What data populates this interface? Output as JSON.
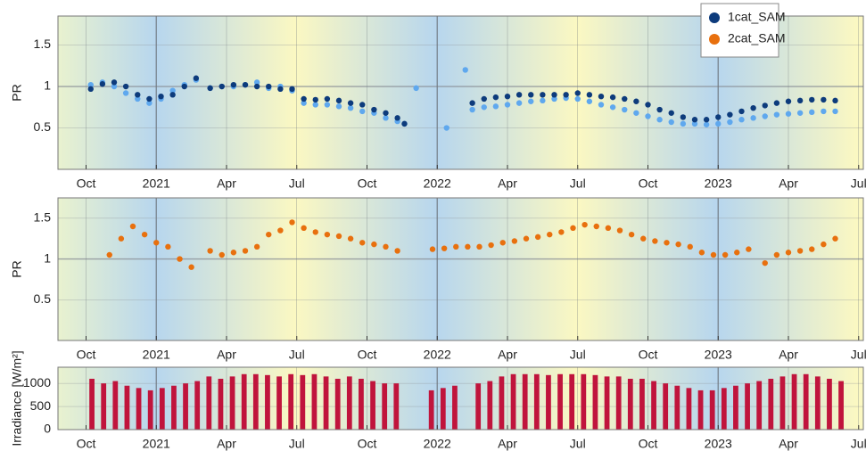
{
  "chart_data": [
    {
      "type": "scatter",
      "ylabel": "PR",
      "legend": "upper right",
      "grid": true,
      "xlim": [
        -1.2,
        33.2
      ],
      "xticks": [
        {
          "value": 0,
          "label": "Oct"
        },
        {
          "value": 3,
          "label": "2021"
        },
        {
          "value": 6,
          "label": "Apr"
        },
        {
          "value": 9,
          "label": "Jul"
        },
        {
          "value": 12,
          "label": "Oct"
        },
        {
          "value": 15,
          "label": "2022"
        },
        {
          "value": 18,
          "label": "Apr"
        },
        {
          "value": 21,
          "label": "Jul"
        },
        {
          "value": 24,
          "label": "Oct"
        },
        {
          "value": 27,
          "label": "2023"
        },
        {
          "value": 30,
          "label": "Apr"
        },
        {
          "value": 33,
          "label": "Jul"
        }
      ],
      "ylim": [
        0,
        1.85
      ],
      "yticks": [
        0.5,
        1,
        1.5
      ],
      "x": [
        0.2,
        0.7,
        1.2,
        1.7,
        2.2,
        2.7,
        3.2,
        3.7,
        4.2,
        4.7,
        5.3,
        5.8,
        6.3,
        6.8,
        7.3,
        7.8,
        8.3,
        8.8,
        9.3,
        9.8,
        10.3,
        10.8,
        11.3,
        11.8,
        12.3,
        12.8,
        13.3,
        13.6,
        14.1,
        15.4,
        16.2,
        16.5,
        17,
        17.5,
        18,
        18.5,
        19,
        19.5,
        20,
        20.5,
        21,
        21.5,
        22,
        22.5,
        23,
        23.5,
        24,
        24.5,
        25,
        25.5,
        26,
        26.5,
        27,
        27.5,
        28,
        28.5,
        29,
        29.5,
        30,
        30.5,
        31,
        31.5,
        32
      ],
      "series": [
        {
          "color": "#5fa8ee",
          "values": [
            1.02,
            1.05,
            1.0,
            0.92,
            0.85,
            0.8,
            0.85,
            0.95,
            1.02,
            1.08,
            0.98,
            1.0,
            1.0,
            1.02,
            1.05,
            0.98,
            1.0,
            0.95,
            0.8,
            0.78,
            0.78,
            0.76,
            0.74,
            0.7,
            0.68,
            0.62,
            0.58,
            0.55,
            0.98,
            0.5,
            1.2,
            0.72,
            0.75,
            0.76,
            0.78,
            0.8,
            0.82,
            0.83,
            0.85,
            0.86,
            0.85,
            0.82,
            0.78,
            0.75,
            0.72,
            0.68,
            0.64,
            0.6,
            0.57,
            0.55,
            0.55,
            0.54,
            0.55,
            0.57,
            0.6,
            0.62,
            0.64,
            0.66,
            0.67,
            0.68,
            0.69,
            0.7,
            0.7
          ]
        },
        {
          "name": "1cat_SAM",
          "color": "#0d3b7c",
          "values": [
            0.97,
            1.03,
            1.05,
            1.0,
            0.9,
            0.85,
            0.88,
            0.9,
            1.0,
            1.1,
            0.98,
            1.0,
            1.02,
            1.02,
            1.0,
            1.0,
            0.97,
            0.97,
            0.85,
            0.84,
            0.85,
            0.83,
            0.8,
            0.78,
            0.72,
            0.68,
            0.62,
            0.55,
            null,
            null,
            null,
            0.8,
            0.85,
            0.87,
            0.88,
            0.9,
            0.9,
            0.9,
            0.9,
            0.9,
            0.92,
            0.9,
            0.88,
            0.87,
            0.85,
            0.82,
            0.78,
            0.72,
            0.68,
            0.63,
            0.6,
            0.6,
            0.63,
            0.66,
            0.7,
            0.74,
            0.77,
            0.8,
            0.82,
            0.83,
            0.84,
            0.84,
            0.83
          ]
        }
      ]
    },
    {
      "type": "scatter",
      "ylabel": "PR",
      "grid": true,
      "xlim": [
        -1.2,
        33.2
      ],
      "xticks": [
        {
          "value": 0,
          "label": "Oct"
        },
        {
          "value": 3,
          "label": "2021"
        },
        {
          "value": 6,
          "label": "Apr"
        },
        {
          "value": 9,
          "label": "Jul"
        },
        {
          "value": 12,
          "label": "Oct"
        },
        {
          "value": 15,
          "label": "2022"
        },
        {
          "value": 18,
          "label": "Apr"
        },
        {
          "value": 21,
          "label": "Jul"
        },
        {
          "value": 24,
          "label": "Oct"
        },
        {
          "value": 27,
          "label": "2023"
        },
        {
          "value": 30,
          "label": "Apr"
        },
        {
          "value": 33,
          "label": "Jul"
        }
      ],
      "ylim": [
        0,
        1.75
      ],
      "yticks": [
        0.5,
        1,
        1.5
      ],
      "x": [
        1.0,
        1.5,
        2.0,
        2.5,
        3.0,
        3.5,
        4.0,
        4.5,
        5.3,
        5.8,
        6.3,
        6.8,
        7.3,
        7.8,
        8.3,
        8.8,
        9.3,
        9.8,
        10.3,
        10.8,
        11.3,
        11.8,
        12.3,
        12.8,
        13.3,
        14.8,
        15.3,
        15.8,
        16.3,
        16.8,
        17.3,
        17.8,
        18.3,
        18.8,
        19.3,
        19.8,
        20.3,
        20.8,
        21.3,
        21.8,
        22.3,
        22.8,
        23.3,
        23.8,
        24.3,
        24.8,
        25.3,
        25.8,
        26.3,
        26.8,
        27.3,
        27.8,
        28.3,
        29,
        29.5,
        30,
        30.5,
        31,
        31.5,
        32
      ],
      "series": [
        {
          "name": "2cat_SAM",
          "color": "#e8700e",
          "values": [
            1.05,
            1.25,
            1.4,
            1.3,
            1.2,
            1.15,
            1.0,
            0.9,
            1.1,
            1.05,
            1.08,
            1.1,
            1.15,
            1.3,
            1.35,
            1.45,
            1.38,
            1.33,
            1.3,
            1.28,
            1.25,
            1.2,
            1.18,
            1.15,
            1.1,
            1.12,
            1.13,
            1.15,
            1.15,
            1.15,
            1.17,
            1.2,
            1.22,
            1.25,
            1.27,
            1.3,
            1.33,
            1.38,
            1.42,
            1.4,
            1.38,
            1.35,
            1.3,
            1.25,
            1.22,
            1.2,
            1.18,
            1.15,
            1.08,
            1.05,
            1.05,
            1.08,
            1.12,
            0.95,
            1.05,
            1.08,
            1.1,
            1.12,
            1.18,
            1.25
          ]
        }
      ]
    },
    {
      "type": "bar",
      "ylabel": "Irradiance [W/m²]",
      "grid": true,
      "xlim": [
        -1.2,
        33.2
      ],
      "xticks": [
        {
          "value": 0,
          "label": "Oct"
        },
        {
          "value": 3,
          "label": "2021"
        },
        {
          "value": 6,
          "label": "Apr"
        },
        {
          "value": 9,
          "label": "Jul"
        },
        {
          "value": 12,
          "label": "Oct"
        },
        {
          "value": 15,
          "label": "2022"
        },
        {
          "value": 18,
          "label": "Apr"
        },
        {
          "value": 21,
          "label": "Jul"
        },
        {
          "value": 24,
          "label": "Oct"
        },
        {
          "value": 27,
          "label": "2023"
        },
        {
          "value": 30,
          "label": "Apr"
        },
        {
          "value": 33,
          "label": "Jul"
        }
      ],
      "ylim": [
        0,
        1350
      ],
      "yticks": [
        0,
        500,
        1000
      ],
      "x": [
        0.25,
        0.75,
        1.25,
        1.75,
        2.25,
        2.75,
        3.25,
        3.75,
        4.25,
        4.75,
        5.25,
        5.75,
        6.25,
        6.75,
        7.25,
        7.75,
        8.25,
        8.75,
        9.25,
        9.75,
        10.25,
        10.75,
        11.25,
        11.75,
        12.25,
        12.75,
        13.25,
        13.75,
        14.25,
        14.75,
        15.25,
        15.75,
        16.25,
        16.75,
        17.25,
        17.75,
        18.25,
        18.75,
        19.25,
        19.75,
        20.25,
        20.75,
        21.25,
        21.75,
        22.25,
        22.75,
        23.25,
        23.75,
        24.25,
        24.75,
        25.25,
        25.75,
        26.25,
        26.75,
        27.25,
        27.75,
        28.25,
        28.75,
        29.25,
        29.75,
        30.25,
        30.75,
        31.25,
        31.75,
        32.25
      ],
      "series": [
        {
          "color": "#c0143c",
          "values": [
            1100,
            1000,
            1050,
            950,
            900,
            850,
            900,
            950,
            1000,
            1050,
            1150,
            1100,
            1150,
            1200,
            1200,
            1180,
            1150,
            1200,
            1180,
            1200,
            1150,
            1100,
            1150,
            1100,
            1050,
            1000,
            1000,
            null,
            null,
            850,
            900,
            950,
            null,
            1000,
            1050,
            1150,
            1200,
            1200,
            1200,
            1180,
            1200,
            1200,
            1200,
            1180,
            1150,
            1150,
            1100,
            1100,
            1050,
            1000,
            950,
            900,
            850,
            850,
            900,
            950,
            1000,
            1050,
            1100,
            1150,
            1200,
            1200,
            1150,
            1100,
            1050
          ]
        }
      ]
    }
  ]
}
